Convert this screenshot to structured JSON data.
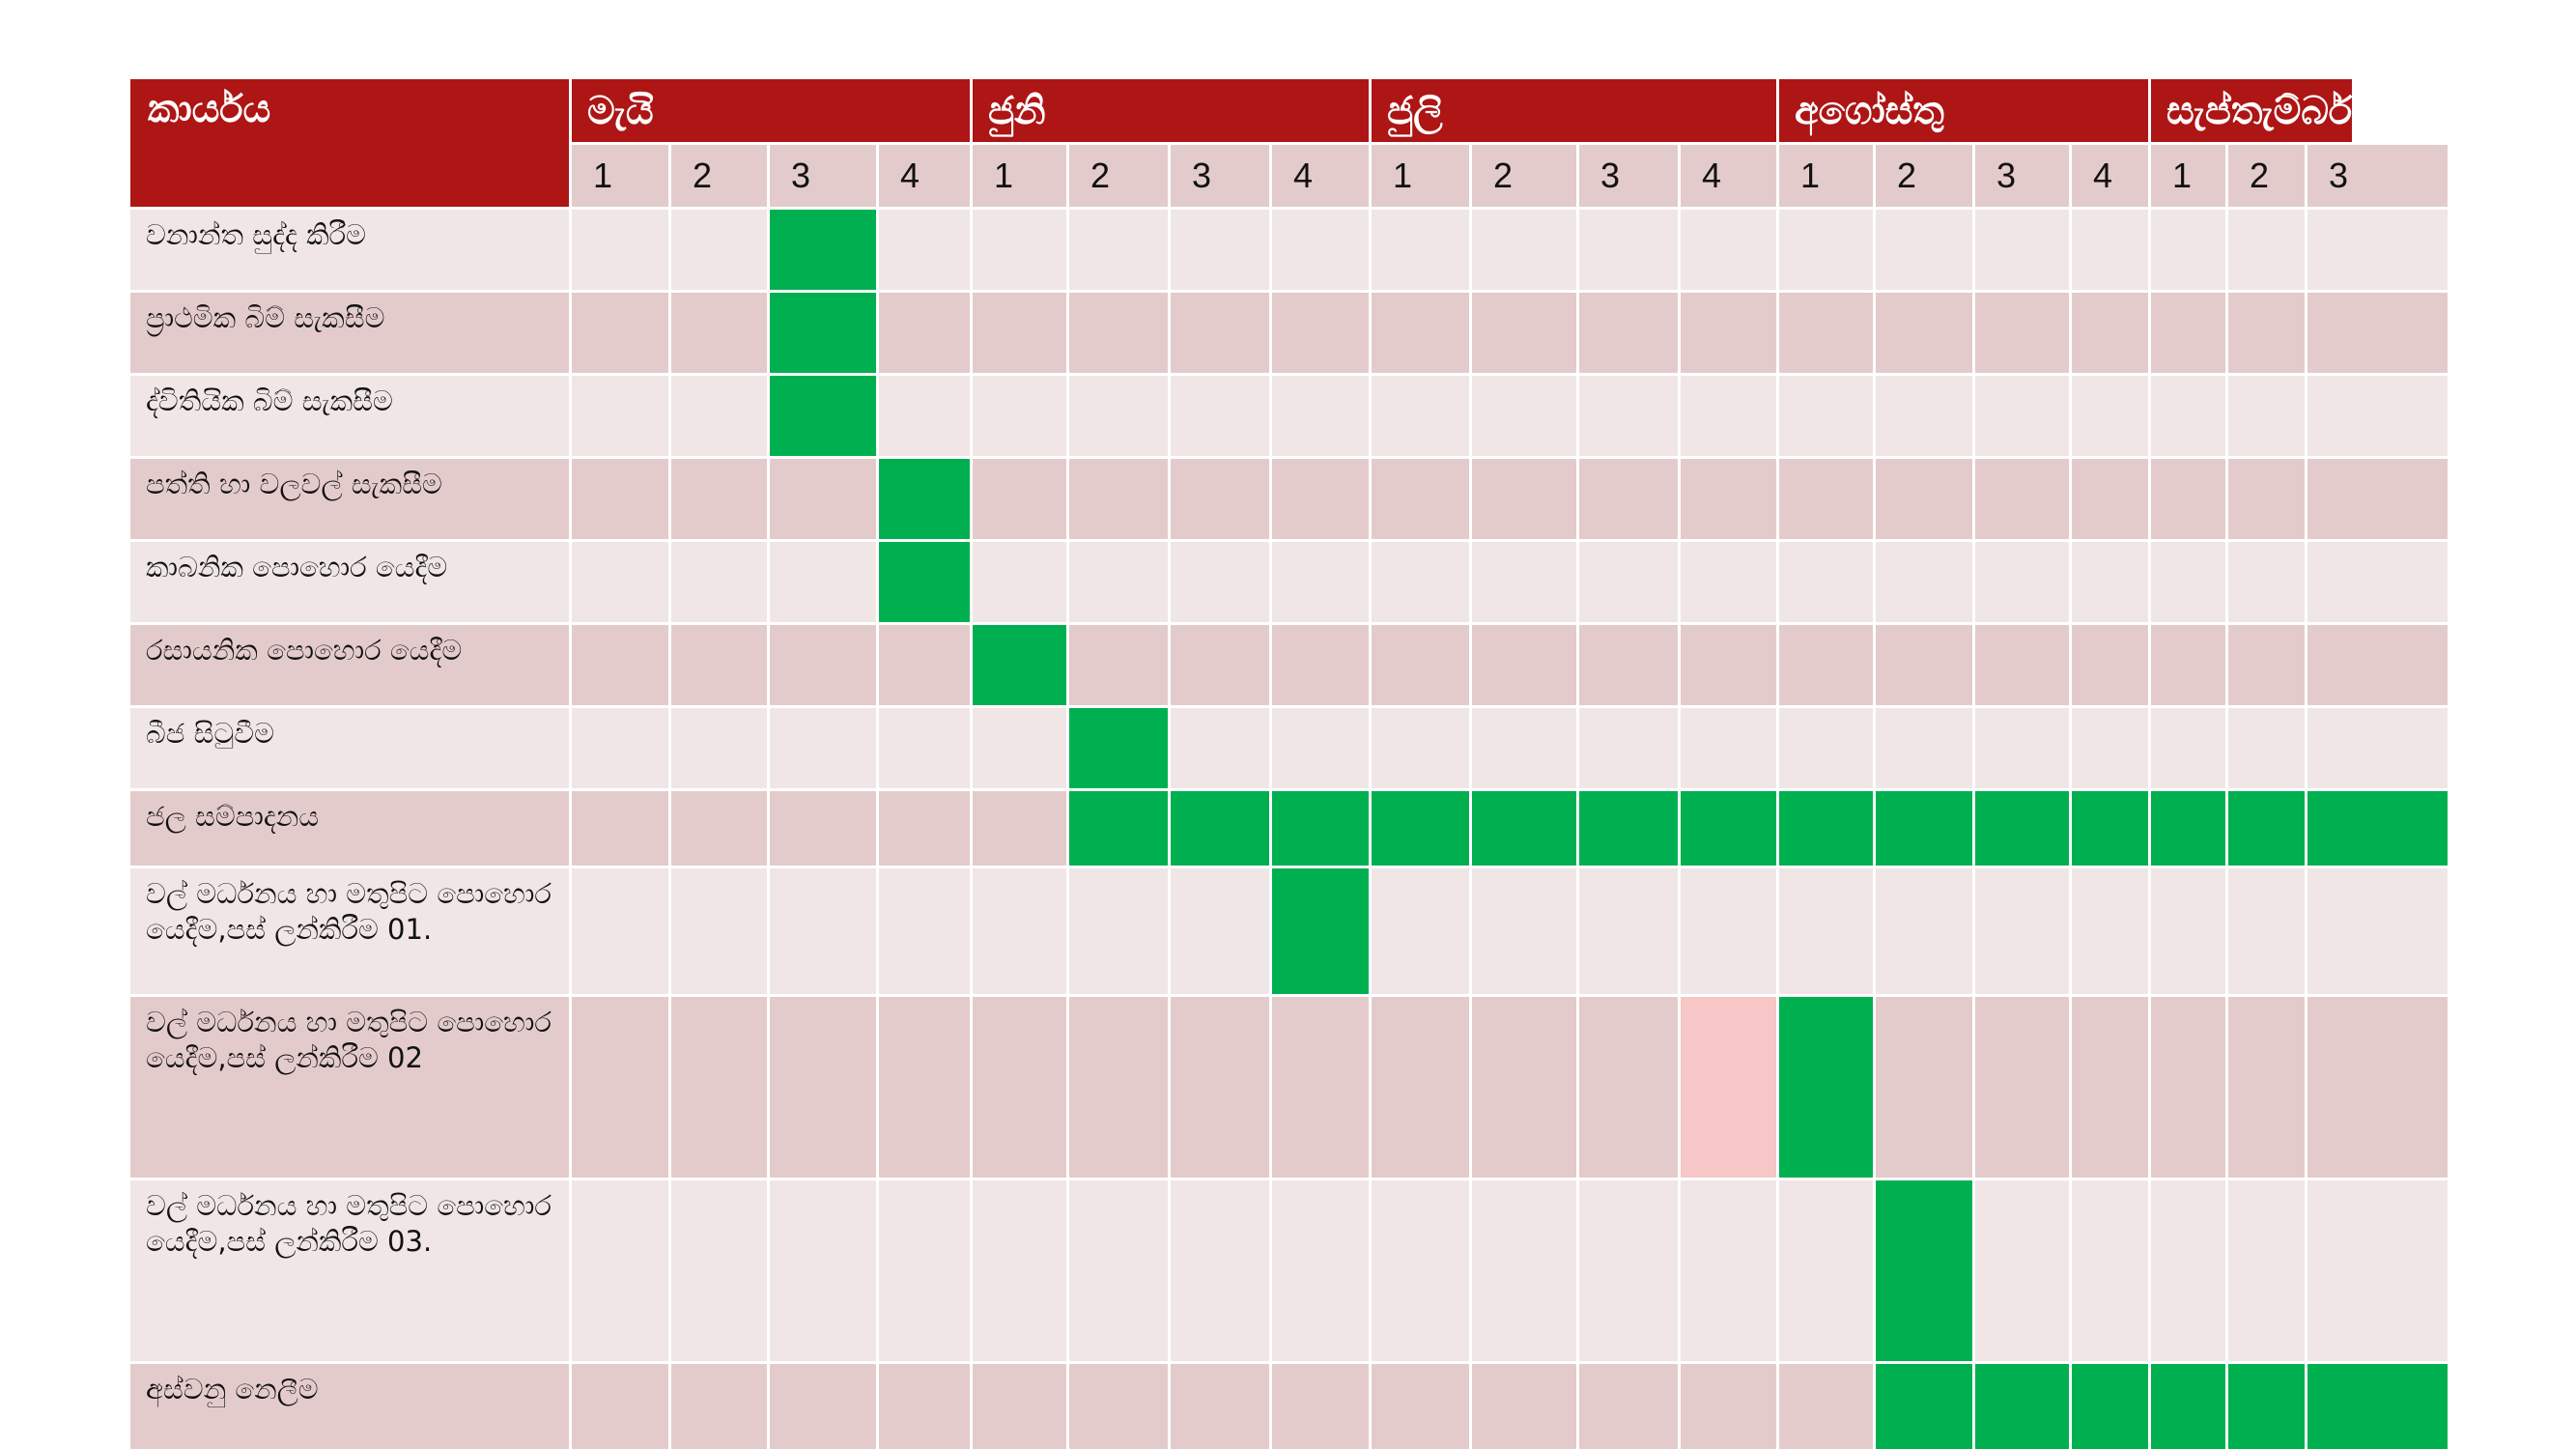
{
  "header": {
    "task_label": "කාර්යය",
    "months": [
      "මැයි",
      "ජුනි",
      "ජුලි",
      "අගෝස්තු",
      "සැප්තැම්බර්"
    ],
    "weeks": [
      "1",
      "2",
      "3",
      "4"
    ]
  },
  "tasks": [
    {
      "name": "වනාන්ත සුද්ද කිරීම",
      "active_weeks": [
        3
      ]
    },
    {
      "name": "ප්‍රාථමික බිම් සැකසීම",
      "active_weeks": [
        3
      ]
    },
    {
      "name": "ද්විතියික බිම් සැකසීම",
      "active_weeks": [
        3
      ]
    },
    {
      "name": "පත්ති හා වලවල් සැකසීම",
      "active_weeks": [
        4
      ]
    },
    {
      "name": "කාබනික පොහොර යෙදීම",
      "active_weeks": [
        4
      ]
    },
    {
      "name": "රසායනික පොහොර යෙදීම",
      "active_weeks": [
        5
      ]
    },
    {
      "name": "බීජ සිටුවීම",
      "active_weeks": [
        6
      ]
    },
    {
      "name": "ජල සම්පාදනය",
      "active_weeks": [
        6,
        7,
        8,
        9,
        10,
        11,
        12,
        13,
        14,
        15,
        16,
        17,
        18,
        19,
        20
      ]
    },
    {
      "name": "වල් මර්ධනය හා මතුපිට පොහොර යෙදීම,පස් ලන්කිරීම 01.",
      "active_weeks": [
        8
      ]
    },
    {
      "name": "වල් මර්ධනය හා මතුපිට පොහොර යෙදීම,පස් ලන්කිරීම 02",
      "active_weeks": [
        13
      ],
      "light_weeks": [
        12
      ]
    },
    {
      "name": "වල් මර්ධනය හා මතුපිට පොහොර යෙදීම,පස් ලන්කිරීම 03.",
      "active_weeks": [
        14
      ]
    },
    {
      "name": "අස්වනු නෙලීම",
      "active_weeks": [
        14,
        15,
        16,
        17,
        18,
        19,
        20
      ]
    }
  ],
  "colors": {
    "header": "#ae1515",
    "active": "#00b050",
    "light": "#f7c6c6",
    "band_light": "#f0e6e6",
    "band_dark": "#e4cbcb"
  }
}
